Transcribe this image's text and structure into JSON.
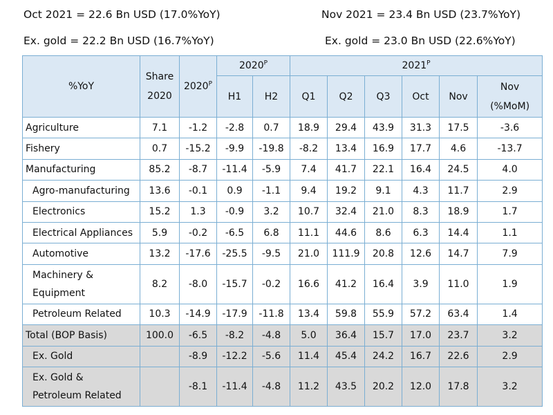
{
  "summary": {
    "oct_total": "Oct 2021 = 22.6 Bn USD (17.0%YoY)",
    "nov_total": "Nov 2021 = 23.4 Bn USD (23.7%YoY)",
    "oct_exgold": "Ex. gold = 22.2 Bn USD (16.7%YoY)",
    "nov_exgold": "Ex. gold = 23.0 Bn USD (22.6%YoY)"
  },
  "table": {
    "corner": "%YoY",
    "share_top": "Share",
    "share_bottom": "2020",
    "y2020": "2020",
    "p": "P",
    "g2020": "2020",
    "g2021": "2021",
    "h1": "H1",
    "h2": "H2",
    "q1": "Q1",
    "q2": "Q2",
    "q3": "Q3",
    "oct": "Oct",
    "nov": "Nov",
    "novmom_top": "Nov",
    "novmom_bottom": "(%MoM)",
    "rows": [
      {
        "label": "Agriculture",
        "v": [
          "7.1",
          "-1.2",
          "-2.8",
          "0.7",
          "18.9",
          "29.4",
          "43.9",
          "31.3",
          "17.5",
          "-3.6"
        ]
      },
      {
        "label": "Fishery",
        "v": [
          "0.7",
          "-15.2",
          "-9.9",
          "-19.8",
          "-8.2",
          "13.4",
          "16.9",
          "17.7",
          "4.6",
          "-13.7"
        ]
      },
      {
        "label": "Manufacturing",
        "v": [
          "85.2",
          "-8.7",
          "-11.4",
          "-5.9",
          "7.4",
          "41.7",
          "22.1",
          "16.4",
          "24.5",
          "4.0"
        ]
      },
      {
        "label": "Agro-manufacturing",
        "v": [
          "13.6",
          "-0.1",
          "0.9",
          "-1.1",
          "9.4",
          "19.2",
          "9.1",
          "4.3",
          "11.7",
          "2.9"
        ]
      },
      {
        "label": "Electronics",
        "v": [
          "15.2",
          "1.3",
          "-0.9",
          "3.2",
          "10.7",
          "32.4",
          "21.0",
          "8.3",
          "18.9",
          "1.7"
        ]
      },
      {
        "label": "Electrical Appliances",
        "v": [
          "5.9",
          "-0.2",
          "-6.5",
          "6.8",
          "11.1",
          "44.6",
          "8.6",
          "6.3",
          "14.4",
          "1.1"
        ]
      },
      {
        "label": "Automotive",
        "v": [
          "13.2",
          "-17.6",
          "-25.5",
          "-9.5",
          "21.0",
          "111.9",
          "20.8",
          "12.6",
          "14.7",
          "7.9"
        ]
      },
      {
        "label_line1": "Machinery &",
        "label_line2": "Equipment",
        "v": [
          "8.2",
          "-8.0",
          "-15.7",
          "-0.2",
          "16.6",
          "41.2",
          "16.4",
          "3.9",
          "11.0",
          "1.9"
        ]
      },
      {
        "label": "Petroleum Related",
        "v": [
          "10.3",
          "-14.9",
          "-17.9",
          "-11.8",
          "13.4",
          "59.8",
          "55.9",
          "57.2",
          "63.4",
          "1.4"
        ]
      },
      {
        "label": "Total (BOP Basis)",
        "v": [
          "100.0",
          "-6.5",
          "-8.2",
          "-4.8",
          "5.0",
          "36.4",
          "15.7",
          "17.0",
          "23.7",
          "3.2"
        ]
      },
      {
        "label": "Ex. Gold",
        "v": [
          "",
          "-8.9",
          "-12.2",
          "-5.6",
          "11.4",
          "45.4",
          "24.2",
          "16.7",
          "22.6",
          "2.9"
        ]
      },
      {
        "label_line1": "Ex. Gold &",
        "label_line2": "Petroleum Related",
        "v": [
          "",
          "-8.1",
          "-11.4",
          "-4.8",
          "11.2",
          "43.5",
          "20.2",
          "12.0",
          "17.8",
          "3.2"
        ]
      }
    ]
  }
}
